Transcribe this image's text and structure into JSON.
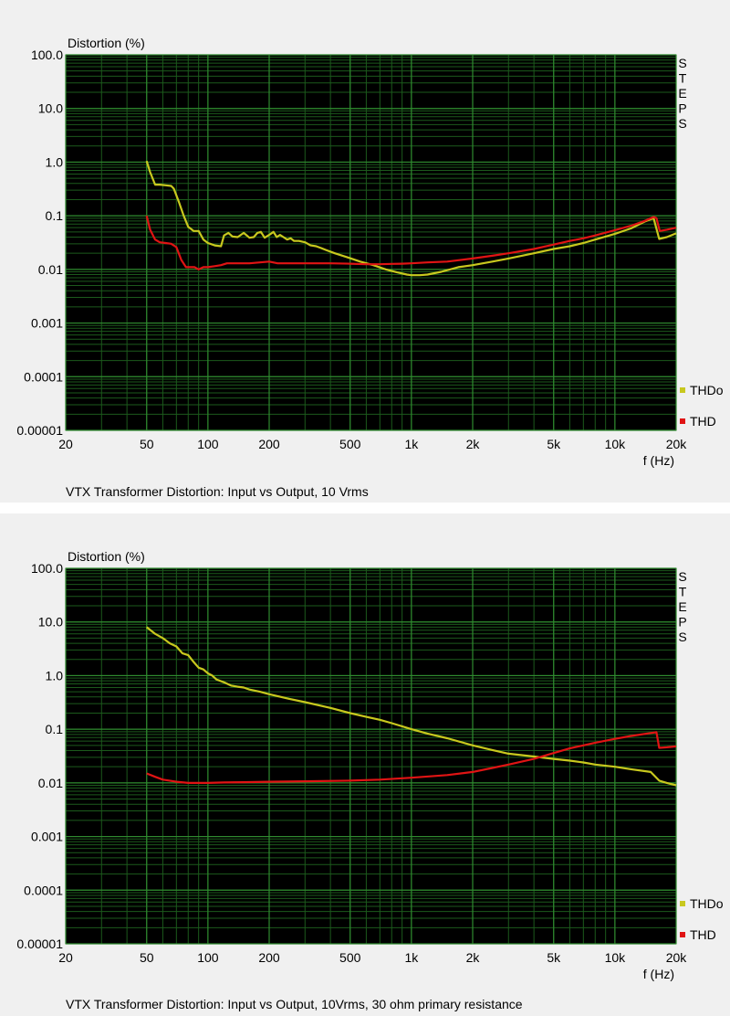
{
  "chart_data": [
    {
      "type": "line",
      "title": "VTX Transformer Distortion: Input vs Output, 10 Vrms",
      "ylabel": "Distortion (%)",
      "xlabel": "f (Hz)",
      "xscale": "log",
      "yscale": "log",
      "xlim": [
        20,
        20000
      ],
      "ylim": [
        1e-05,
        100
      ],
      "x_ticks": [
        {
          "value": 20,
          "label": "20"
        },
        {
          "value": 50,
          "label": "50"
        },
        {
          "value": 100,
          "label": "100"
        },
        {
          "value": 200,
          "label": "200"
        },
        {
          "value": 500,
          "label": "500"
        },
        {
          "value": 1000,
          "label": "1k"
        },
        {
          "value": 2000,
          "label": "2k"
        },
        {
          "value": 5000,
          "label": "5k"
        },
        {
          "value": 10000,
          "label": "10k"
        },
        {
          "value": 20000,
          "label": "20k"
        }
      ],
      "y_ticks": [
        {
          "value": 100,
          "label": "100.0"
        },
        {
          "value": 10,
          "label": "10.0"
        },
        {
          "value": 1,
          "label": "1.0"
        },
        {
          "value": 0.1,
          "label": "0.1"
        },
        {
          "value": 0.01,
          "label": "0.01"
        },
        {
          "value": 0.001,
          "label": "0.001"
        },
        {
          "value": 0.0001,
          "label": "0.0001"
        },
        {
          "value": 1e-05,
          "label": "0.00001"
        }
      ],
      "side_label": "STEPS",
      "grid": true,
      "legend_position": "bottom-right",
      "series": [
        {
          "name": "THDo",
          "color": "#c8c81e",
          "x": [
            50,
            52,
            55,
            58,
            62,
            66,
            68,
            72,
            76,
            80,
            85,
            90,
            95,
            100,
            108,
            116,
            120,
            126,
            132,
            140,
            150,
            160,
            168,
            175,
            182,
            190,
            200,
            210,
            218,
            226,
            235,
            245,
            255,
            265,
            280,
            300,
            320,
            340,
            360,
            380,
            420,
            480,
            560,
            650,
            750,
            850,
            950,
            1000,
            1100,
            1200,
            1400,
            1700,
            2000,
            2500,
            3000,
            4000,
            5000,
            6000,
            7000,
            8000,
            10000,
            12000,
            14000,
            15500,
            16500,
            18000,
            20000
          ],
          "y": [
            1.05,
            0.65,
            0.38,
            0.38,
            0.37,
            0.36,
            0.32,
            0.18,
            0.1,
            0.062,
            0.052,
            0.052,
            0.036,
            0.031,
            0.028,
            0.027,
            0.043,
            0.048,
            0.041,
            0.04,
            0.048,
            0.039,
            0.04,
            0.048,
            0.05,
            0.039,
            0.044,
            0.05,
            0.04,
            0.044,
            0.04,
            0.036,
            0.038,
            0.034,
            0.034,
            0.032,
            0.028,
            0.027,
            0.025,
            0.023,
            0.02,
            0.017,
            0.014,
            0.012,
            0.01,
            0.0088,
            0.008,
            0.0078,
            0.0078,
            0.008,
            0.009,
            0.011,
            0.012,
            0.014,
            0.016,
            0.02,
            0.024,
            0.027,
            0.031,
            0.036,
            0.046,
            0.058,
            0.078,
            0.09,
            0.037,
            0.04,
            0.047
          ]
        },
        {
          "name": "THD",
          "color": "#e01414",
          "x": [
            50,
            52,
            55,
            58,
            62,
            66,
            70,
            74,
            78,
            82,
            86,
            90,
            95,
            100,
            108,
            116,
            124,
            140,
            160,
            180,
            200,
            220,
            250,
            300,
            400,
            500,
            600,
            700,
            800,
            900,
            1000,
            1200,
            1500,
            2000,
            2500,
            3000,
            4000,
            5000,
            6000,
            7000,
            8000,
            10000,
            12000,
            14000,
            15500,
            16000,
            16600,
            18000,
            20000
          ],
          "y": [
            0.1,
            0.055,
            0.036,
            0.032,
            0.031,
            0.03,
            0.026,
            0.015,
            0.011,
            0.011,
            0.011,
            0.01,
            0.011,
            0.011,
            0.0115,
            0.012,
            0.013,
            0.013,
            0.013,
            0.0135,
            0.014,
            0.013,
            0.013,
            0.013,
            0.013,
            0.0128,
            0.0125,
            0.0125,
            0.0127,
            0.0128,
            0.013,
            0.0135,
            0.014,
            0.016,
            0.018,
            0.02,
            0.024,
            0.029,
            0.034,
            0.038,
            0.043,
            0.054,
            0.065,
            0.08,
            0.095,
            0.09,
            0.052,
            0.055,
            0.06
          ]
        }
      ]
    },
    {
      "type": "line",
      "title": "VTX Transformer Distortion: Input vs Output, 10Vrms, 30 ohm primary resistance",
      "ylabel": "Distortion (%)",
      "xlabel": "f (Hz)",
      "xscale": "log",
      "yscale": "log",
      "xlim": [
        20,
        20000
      ],
      "ylim": [
        1e-05,
        100
      ],
      "x_ticks": [
        {
          "value": 20,
          "label": "20"
        },
        {
          "value": 50,
          "label": "50"
        },
        {
          "value": 100,
          "label": "100"
        },
        {
          "value": 200,
          "label": "200"
        },
        {
          "value": 500,
          "label": "500"
        },
        {
          "value": 1000,
          "label": "1k"
        },
        {
          "value": 2000,
          "label": "2k"
        },
        {
          "value": 5000,
          "label": "5k"
        },
        {
          "value": 10000,
          "label": "10k"
        },
        {
          "value": 20000,
          "label": "20k"
        }
      ],
      "y_ticks": [
        {
          "value": 100,
          "label": "100.0"
        },
        {
          "value": 10,
          "label": "10.0"
        },
        {
          "value": 1,
          "label": "1.0"
        },
        {
          "value": 0.1,
          "label": "0.1"
        },
        {
          "value": 0.01,
          "label": "0.01"
        },
        {
          "value": 0.001,
          "label": "0.001"
        },
        {
          "value": 0.0001,
          "label": "0.0001"
        },
        {
          "value": 1e-05,
          "label": "0.00001"
        }
      ],
      "side_label": "STEPS",
      "grid": true,
      "legend_position": "bottom-right",
      "series": [
        {
          "name": "THDo",
          "color": "#c8c81e",
          "x": [
            50,
            55,
            60,
            65,
            70,
            75,
            80,
            85,
            90,
            95,
            100,
            105,
            110,
            120,
            130,
            140,
            150,
            160,
            180,
            200,
            250,
            300,
            400,
            500,
            600,
            700,
            800,
            1000,
            1200,
            1500,
            2000,
            2500,
            3000,
            4000,
            5000,
            6000,
            7000,
            8000,
            10000,
            12000,
            15000,
            16500,
            18000,
            20000
          ],
          "y": [
            8,
            6,
            5,
            4,
            3.5,
            2.6,
            2.4,
            1.8,
            1.4,
            1.3,
            1.1,
            1.0,
            0.85,
            0.75,
            0.65,
            0.62,
            0.6,
            0.55,
            0.5,
            0.45,
            0.37,
            0.32,
            0.25,
            0.2,
            0.17,
            0.15,
            0.13,
            0.1,
            0.083,
            0.068,
            0.05,
            0.041,
            0.035,
            0.031,
            0.028,
            0.026,
            0.024,
            0.022,
            0.02,
            0.018,
            0.016,
            0.011,
            0.01,
            0.009
          ]
        },
        {
          "name": "THD",
          "color": "#e01414",
          "x": [
            50,
            55,
            60,
            70,
            80,
            100,
            120,
            150,
            200,
            300,
            500,
            700,
            1000,
            1500,
            2000,
            2500,
            3000,
            4000,
            5000,
            6000,
            7000,
            8000,
            10000,
            12000,
            15000,
            16000,
            16500,
            18000,
            20000
          ],
          "y": [
            0.015,
            0.013,
            0.0115,
            0.0105,
            0.01,
            0.01,
            0.0102,
            0.0103,
            0.0105,
            0.0107,
            0.011,
            0.0115,
            0.0125,
            0.014,
            0.016,
            0.019,
            0.022,
            0.028,
            0.036,
            0.044,
            0.05,
            0.056,
            0.066,
            0.075,
            0.085,
            0.088,
            0.045,
            0.046,
            0.048
          ]
        }
      ]
    }
  ]
}
